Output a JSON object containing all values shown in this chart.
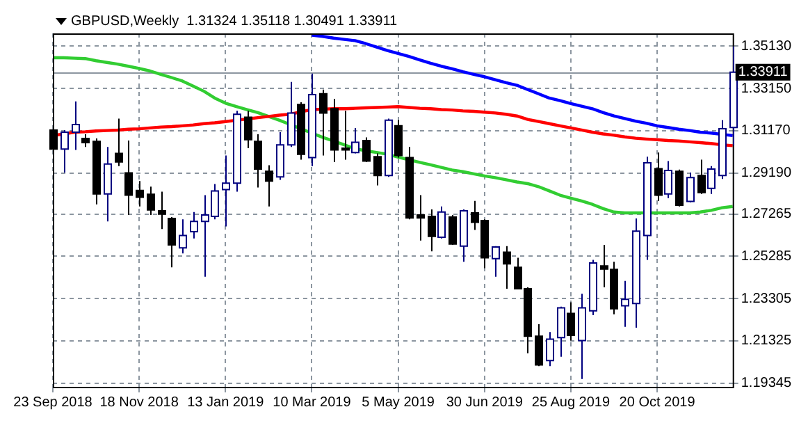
{
  "chart_data": {
    "type": "candlestick",
    "title": "GBPUSD,Weekly  1.31324 1.35118 1.30491 1.33911",
    "categories": [
      "23 Sep 2018",
      null,
      null,
      null,
      null,
      null,
      null,
      null,
      "18 Nov 2018",
      null,
      null,
      null,
      null,
      null,
      null,
      null,
      "13 Jan 2019",
      null,
      null,
      null,
      null,
      null,
      null,
      null,
      "10 Mar 2019",
      null,
      null,
      null,
      null,
      null,
      null,
      null,
      "5 May 2019",
      null,
      null,
      null,
      null,
      null,
      null,
      null,
      "30 Jun 2019",
      null,
      null,
      null,
      null,
      null,
      null,
      null,
      "25 Aug 2019",
      null,
      null,
      null,
      null,
      null,
      null,
      null,
      "20 Oct 2019",
      null,
      null,
      null,
      null,
      null,
      null,
      null
    ],
    "ohlc": [
      [
        1.312,
        1.321,
        1.2995,
        1.3031
      ],
      [
        1.3031,
        1.312,
        1.2921,
        1.311
      ],
      [
        1.311,
        1.3254,
        1.3027,
        1.3146
      ],
      [
        1.3081,
        1.31,
        1.3041,
        1.3061
      ],
      [
        1.3067,
        1.3081,
        1.2772,
        1.2821
      ],
      [
        1.2821,
        1.3041,
        1.2692,
        1.2961
      ],
      [
        1.3011,
        1.3174,
        1.2951,
        1.2971
      ],
      [
        1.2919,
        1.3071,
        1.2722,
        1.2815
      ],
      [
        1.2837,
        1.2881,
        1.2762,
        1.2805
      ],
      [
        1.2819,
        1.2855,
        1.2722,
        1.2746
      ],
      [
        1.2742,
        1.2831,
        1.2656,
        1.2726
      ],
      [
        1.2706,
        1.2712,
        1.2477,
        1.2582
      ],
      [
        1.2568,
        1.2702,
        1.2542,
        1.2626
      ],
      [
        1.2644,
        1.2736,
        1.2612,
        1.2692
      ],
      [
        1.2692,
        1.2815,
        1.2433,
        1.2722
      ],
      [
        1.2716,
        1.2867,
        1.2702,
        1.2835
      ],
      [
        1.2841,
        1.3001,
        1.2668,
        1.2871
      ],
      [
        1.2871,
        1.321,
        1.2831,
        1.3194
      ],
      [
        1.318,
        1.321,
        1.3035,
        1.3075
      ],
      [
        1.3067,
        1.31,
        1.2851,
        1.2937
      ],
      [
        1.2927,
        1.2955,
        1.2762,
        1.2881
      ],
      [
        1.2901,
        1.311,
        1.2887,
        1.3051
      ],
      [
        1.3051,
        1.3346,
        1.3041,
        1.32
      ],
      [
        1.324,
        1.325,
        1.2981,
        1.3007
      ],
      [
        1.2991,
        1.3385,
        1.2951,
        1.3286
      ],
      [
        1.329,
        1.331,
        1.3001,
        1.32
      ],
      [
        1.322,
        1.3266,
        1.2971,
        1.3027
      ],
      [
        1.3035,
        1.321,
        1.2981,
        1.3027
      ],
      [
        1.3015,
        1.313,
        1.3011,
        1.3063
      ],
      [
        1.3071,
        1.3086,
        1.2971,
        1.2975
      ],
      [
        1.2995,
        1.3011,
        1.2861,
        1.2907
      ],
      [
        1.2907,
        1.3174,
        1.2901,
        1.3166
      ],
      [
        1.314,
        1.3166,
        1.2991,
        1.3001
      ],
      [
        1.2991,
        1.3041,
        1.2702,
        1.2708
      ],
      [
        1.2722,
        1.2815,
        1.2602,
        1.2708
      ],
      [
        1.2716,
        1.2748,
        1.2552,
        1.2622
      ],
      [
        1.2618,
        1.2762,
        1.2612,
        1.2736
      ],
      [
        1.2712,
        1.2722,
        1.2582,
        1.2586
      ],
      [
        1.2576,
        1.2748,
        1.2503,
        1.2742
      ],
      [
        1.2732,
        1.2788,
        1.2652,
        1.2688
      ],
      [
        1.2696,
        1.2702,
        1.2473,
        1.2522
      ],
      [
        1.2518,
        1.2576,
        1.2433,
        1.2572
      ],
      [
        1.2548,
        1.2576,
        1.2377,
        1.2493
      ],
      [
        1.2477,
        1.2522,
        1.2373,
        1.2377
      ],
      [
        1.2377,
        1.2383,
        1.2074,
        1.2154
      ],
      [
        1.2154,
        1.221,
        1.2014,
        1.202
      ],
      [
        1.204,
        1.2174,
        1.2014,
        1.214
      ],
      [
        1.2148,
        1.2293,
        1.2058,
        1.2287
      ],
      [
        1.2261,
        1.2313,
        1.2134,
        1.2158
      ],
      [
        1.2134,
        1.2353,
        1.1954,
        1.2287
      ],
      [
        1.2273,
        1.2512,
        1.2253,
        1.2497
      ],
      [
        1.2483,
        1.2582,
        1.2383,
        1.2469
      ],
      [
        1.2467,
        1.2503,
        1.2257,
        1.2283
      ],
      [
        1.2297,
        1.2413,
        1.2198,
        1.2327
      ],
      [
        1.2307,
        1.2706,
        1.2194,
        1.2646
      ],
      [
        1.2626,
        1.2995,
        1.2512,
        1.2967
      ],
      [
        1.2939,
        1.3015,
        1.2788,
        1.2815
      ],
      [
        1.2821,
        1.2975,
        1.2801,
        1.2931
      ],
      [
        1.2927,
        1.2935,
        1.2762,
        1.2768
      ],
      [
        1.2786,
        1.2921,
        1.2782,
        1.2897
      ],
      [
        1.2907,
        1.2981,
        1.2821,
        1.2827
      ],
      [
        1.2847,
        1.2951,
        1.2821,
        1.2937
      ],
      [
        1.2907,
        1.3166,
        1.2891,
        1.3126
      ],
      [
        1.31324,
        1.35118,
        1.30491,
        1.33911
      ]
    ],
    "series": [
      {
        "type": "line",
        "color": "#0000ff",
        "values": [
          null,
          null,
          null,
          null,
          null,
          null,
          null,
          null,
          null,
          null,
          null,
          null,
          null,
          null,
          null,
          null,
          null,
          null,
          null,
          null,
          null,
          null,
          null,
          null,
          1.3565,
          1.3559,
          1.3551,
          1.3545,
          1.3539,
          1.3525,
          1.3509,
          1.3493,
          1.3479,
          1.3465,
          1.3449,
          1.3433,
          1.3419,
          1.3407,
          1.3393,
          1.3381,
          1.337,
          1.3356,
          1.3342,
          1.333,
          1.331,
          1.329,
          1.327,
          1.3258,
          1.3244,
          1.3232,
          1.322,
          1.3202,
          1.3186,
          1.3174,
          1.3162,
          1.3152,
          1.314,
          1.3132,
          1.3124,
          1.3118,
          1.311,
          1.3106,
          1.31,
          1.3094
        ]
      },
      {
        "type": "line",
        "color": "#ff0000",
        "values": [
          1.3094,
          1.3102,
          1.311,
          1.3112,
          1.3116,
          1.3118,
          1.312,
          1.3124,
          1.3126,
          1.313,
          1.3134,
          1.3136,
          1.314,
          1.3144,
          1.315,
          1.3154,
          1.316,
          1.3166,
          1.3172,
          1.3178,
          1.3184,
          1.319,
          1.3194,
          1.3206,
          1.3216,
          1.3218,
          1.322,
          1.322,
          1.3222,
          1.3224,
          1.3226,
          1.3228,
          1.323,
          1.3226,
          1.3222,
          1.322,
          1.3216,
          1.3214,
          1.321,
          1.3208,
          1.3204,
          1.32,
          1.3194,
          1.3186,
          1.317,
          1.316,
          1.315,
          1.314,
          1.313,
          1.312,
          1.311,
          1.3102,
          1.3096,
          1.3088,
          1.3082,
          1.3078,
          1.3075,
          1.3071,
          1.3069,
          1.3065,
          1.3061,
          1.3057,
          1.3051,
          1.3047
        ]
      },
      {
        "type": "line",
        "color": "#32cd32",
        "values": [
          1.3459,
          1.3459,
          1.3457,
          1.3455,
          1.3445,
          1.3437,
          1.3429,
          1.3419,
          1.3409,
          1.3397,
          1.3381,
          1.3366,
          1.335,
          1.3326,
          1.3302,
          1.327,
          1.3246,
          1.323,
          1.3216,
          1.3202,
          1.3184,
          1.3166,
          1.3146,
          1.3126,
          1.3106,
          1.3086,
          1.3069,
          1.3051,
          1.3033,
          1.3023,
          1.3015,
          1.3007,
          1.2993,
          1.2981,
          1.2969,
          1.2957,
          1.2945,
          1.2933,
          1.2925,
          1.2915,
          1.2905,
          1.2897,
          1.2887,
          1.2877,
          1.2869,
          1.2855,
          1.2835,
          1.2815,
          1.2801,
          1.2788,
          1.2772,
          1.2752,
          1.2736,
          1.2732,
          1.2732,
          1.2732,
          1.2732,
          1.2732,
          1.2732,
          1.2732,
          1.2736,
          1.2744,
          1.2756,
          1.2762
        ]
      }
    ],
    "ylim": [
      1.1917,
      1.3573
    ],
    "yticks": [
      {
        "value": 1.3513,
        "label": "1.35130"
      },
      {
        "value": 1.3315,
        "label": "1.33150"
      },
      {
        "value": 1.3117,
        "label": "1.31170"
      },
      {
        "value": 1.2919,
        "label": "1.29190"
      },
      1.27265,
      1.25285,
      1.23305,
      1.21325,
      1.19345
    ],
    "ref_lines": [
      {
        "axis": "y",
        "value": 1.33911,
        "label": "1.33911",
        "color": "#8c96a0"
      }
    ],
    "grid": true
  }
}
